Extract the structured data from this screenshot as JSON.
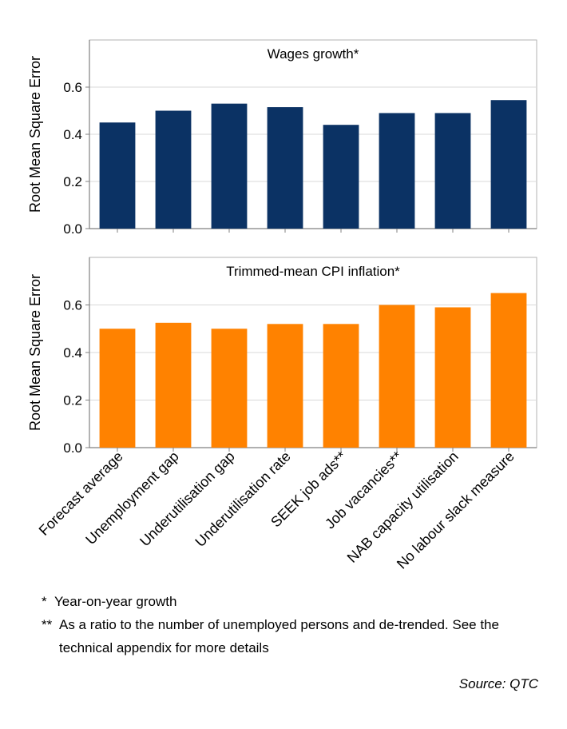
{
  "chart_data": [
    {
      "type": "bar",
      "title": "Wages growth*",
      "ylabel": "Root Mean Square Error",
      "ylim": [
        0,
        0.8
      ],
      "yticks": [
        "0.0",
        "0.2",
        "0.4",
        "0.6"
      ],
      "categories": [
        "Forecast average",
        "Unemployment gap",
        "Underutilisation gap",
        "Underutilisation rate",
        "SEEK job ads**",
        "Job vacancies**",
        "NAB capacity utilisation",
        "No labour slack measure"
      ],
      "values": [
        0.45,
        0.5,
        0.53,
        0.515,
        0.44,
        0.49,
        0.49,
        0.545
      ],
      "color": "#0b3264",
      "grid": true
    },
    {
      "type": "bar",
      "title": "Trimmed-mean CPI inflation*",
      "ylabel": "Root Mean Square Error",
      "ylim": [
        0,
        0.8
      ],
      "yticks": [
        "0.0",
        "0.2",
        "0.4",
        "0.6"
      ],
      "categories": [
        "Forecast average",
        "Unemployment gap",
        "Underutilisation gap",
        "Underutilisation rate",
        "SEEK job ads**",
        "Job vacancies**",
        "NAB capacity utilisation",
        "No labour slack measure"
      ],
      "values": [
        0.5,
        0.525,
        0.5,
        0.52,
        0.52,
        0.6,
        0.59,
        0.65
      ],
      "color": "#ff8200",
      "grid": true
    }
  ],
  "notes": {
    "note1_mark": "*",
    "note1_text": "Year-on-year growth",
    "note2_mark": "**",
    "note2_text": "As a ratio to the number of unemployed persons and de-trended. See the technical appendix for more details"
  },
  "source": "Source: QTC"
}
